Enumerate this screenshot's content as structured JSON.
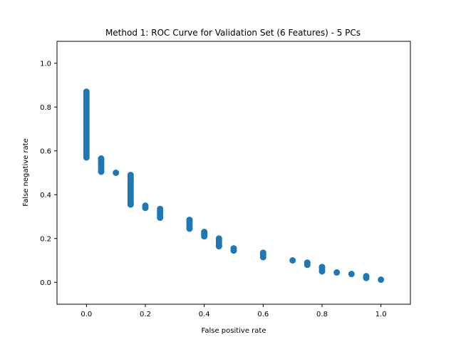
{
  "chart_data": {
    "type": "scatter",
    "title": "Method 1: ROC Curve for Validation Set (6 Features) - 5 PCs",
    "xlabel": "False positive rate",
    "ylabel": "False negative rate",
    "xlim": [
      -0.1,
      1.1
    ],
    "ylim": [
      -0.1,
      1.1
    ],
    "xticks": [
      "0.0",
      "0.2",
      "0.4",
      "0.6",
      "0.8",
      "1.0"
    ],
    "yticks": [
      "0.0",
      "0.2",
      "0.4",
      "0.6",
      "0.8",
      "1.0"
    ],
    "grid": false,
    "legend": "none",
    "marker_color": "#1f77b4",
    "series": [
      {
        "points": [
          [
            0.0,
            0.87
          ],
          [
            0.0,
            0.86
          ],
          [
            0.0,
            0.85
          ],
          [
            0.0,
            0.84
          ],
          [
            0.0,
            0.83
          ],
          [
            0.0,
            0.82
          ],
          [
            0.0,
            0.81
          ],
          [
            0.0,
            0.8
          ],
          [
            0.0,
            0.79
          ],
          [
            0.0,
            0.78
          ],
          [
            0.0,
            0.77
          ],
          [
            0.0,
            0.76
          ],
          [
            0.0,
            0.75
          ],
          [
            0.0,
            0.74
          ],
          [
            0.0,
            0.73
          ],
          [
            0.0,
            0.72
          ],
          [
            0.0,
            0.71
          ],
          [
            0.0,
            0.7
          ],
          [
            0.0,
            0.69
          ],
          [
            0.0,
            0.68
          ],
          [
            0.0,
            0.67
          ],
          [
            0.0,
            0.66
          ],
          [
            0.0,
            0.65
          ],
          [
            0.0,
            0.64
          ],
          [
            0.0,
            0.63
          ],
          [
            0.0,
            0.62
          ],
          [
            0.0,
            0.61
          ],
          [
            0.0,
            0.6
          ],
          [
            0.0,
            0.59
          ],
          [
            0.0,
            0.58
          ],
          [
            0.0,
            0.57
          ],
          [
            0.05,
            0.565
          ],
          [
            0.05,
            0.555
          ],
          [
            0.05,
            0.545
          ],
          [
            0.05,
            0.535
          ],
          [
            0.05,
            0.525
          ],
          [
            0.05,
            0.515
          ],
          [
            0.05,
            0.505
          ],
          [
            0.1,
            0.5
          ],
          [
            0.15,
            0.49
          ],
          [
            0.15,
            0.48
          ],
          [
            0.15,
            0.47
          ],
          [
            0.15,
            0.46
          ],
          [
            0.15,
            0.45
          ],
          [
            0.15,
            0.44
          ],
          [
            0.15,
            0.43
          ],
          [
            0.15,
            0.42
          ],
          [
            0.15,
            0.41
          ],
          [
            0.15,
            0.4
          ],
          [
            0.15,
            0.39
          ],
          [
            0.15,
            0.38
          ],
          [
            0.15,
            0.37
          ],
          [
            0.15,
            0.36
          ],
          [
            0.15,
            0.355
          ],
          [
            0.2,
            0.35
          ],
          [
            0.2,
            0.34
          ],
          [
            0.25,
            0.335
          ],
          [
            0.25,
            0.325
          ],
          [
            0.25,
            0.315
          ],
          [
            0.25,
            0.305
          ],
          [
            0.25,
            0.295
          ],
          [
            0.35,
            0.285
          ],
          [
            0.35,
            0.275
          ],
          [
            0.35,
            0.265
          ],
          [
            0.35,
            0.255
          ],
          [
            0.35,
            0.245
          ],
          [
            0.4,
            0.23
          ],
          [
            0.4,
            0.22
          ],
          [
            0.4,
            0.21
          ],
          [
            0.45,
            0.2
          ],
          [
            0.45,
            0.19
          ],
          [
            0.45,
            0.18
          ],
          [
            0.45,
            0.17
          ],
          [
            0.45,
            0.165
          ],
          [
            0.5,
            0.155
          ],
          [
            0.5,
            0.145
          ],
          [
            0.6,
            0.135
          ],
          [
            0.6,
            0.125
          ],
          [
            0.6,
            0.115
          ],
          [
            0.7,
            0.1
          ],
          [
            0.75,
            0.09
          ],
          [
            0.75,
            0.08
          ],
          [
            0.8,
            0.07
          ],
          [
            0.8,
            0.06
          ],
          [
            0.8,
            0.05
          ],
          [
            0.85,
            0.045
          ],
          [
            0.9,
            0.038
          ],
          [
            0.95,
            0.028
          ],
          [
            0.95,
            0.02
          ],
          [
            1.0,
            0.012
          ]
        ]
      }
    ]
  }
}
